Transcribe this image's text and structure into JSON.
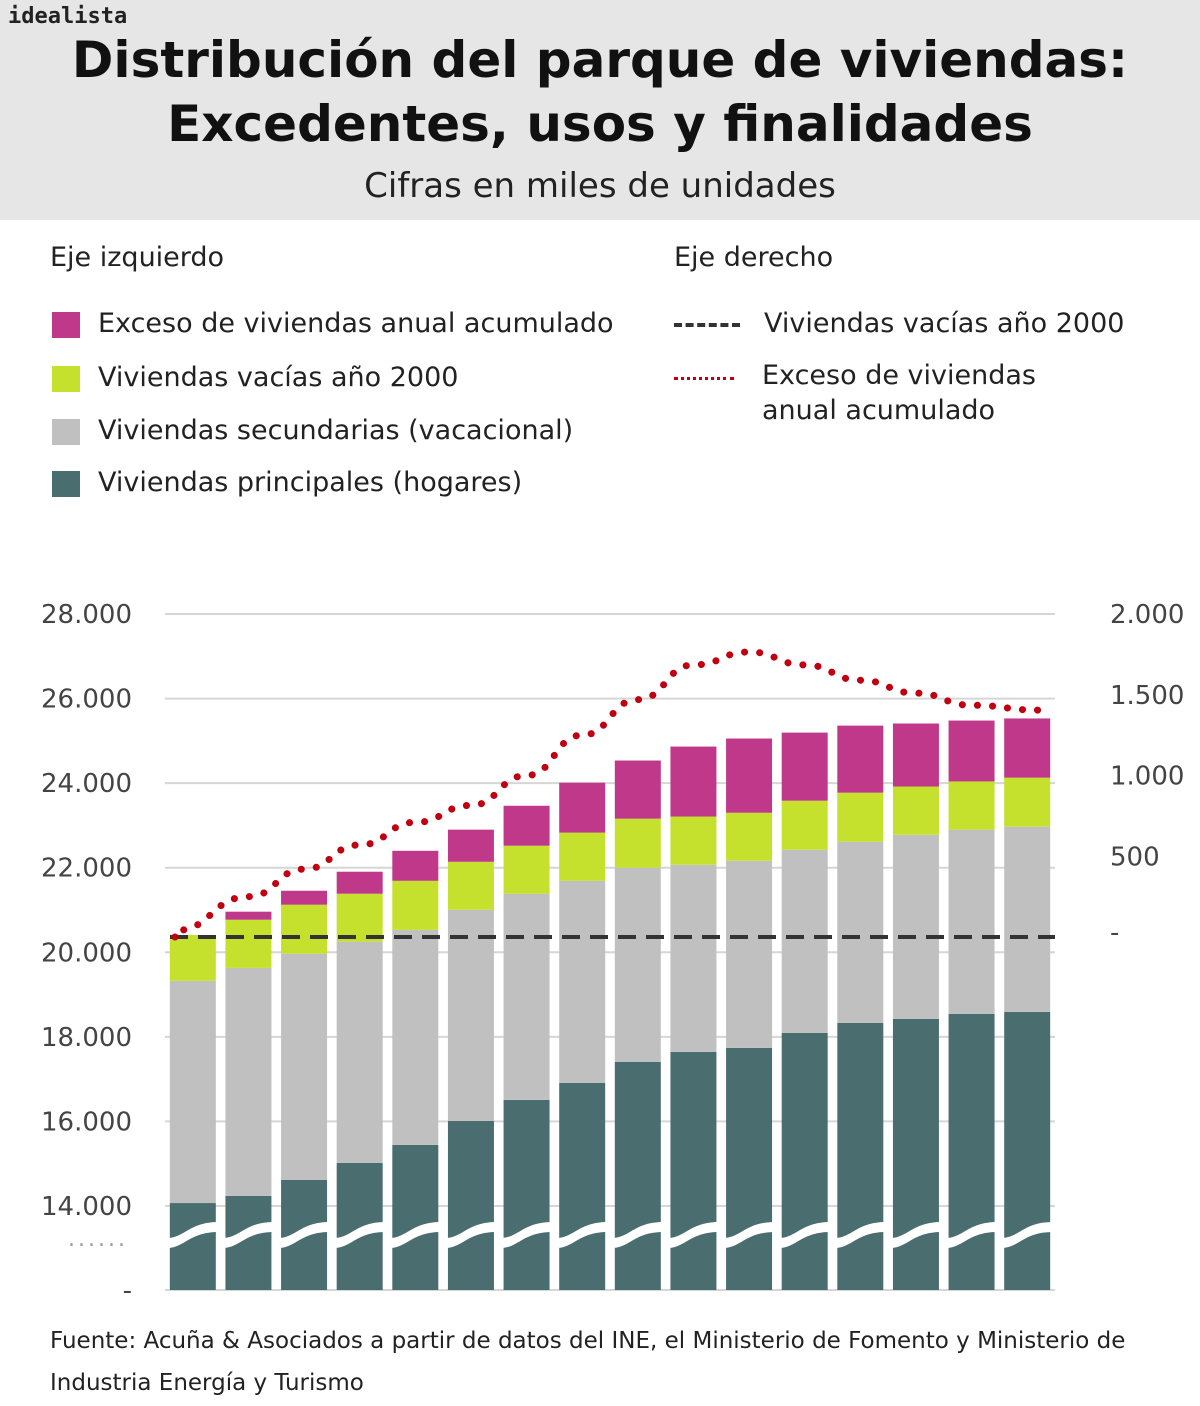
{
  "brand": "idealista",
  "header": {
    "title_line1": "Distribución del parque de viviendas:",
    "title_line2": "Excedentes, usos y finalidades",
    "subtitle": "Cifras en miles de unidades"
  },
  "legend": {
    "left_heading": "Eje izquierdo",
    "right_heading": "Eje derecho",
    "left_items": [
      {
        "label": "Exceso de viviendas anual acumulado",
        "color": "#c0388a"
      },
      {
        "label": "Viviendas vacías año 2000",
        "color": "#c5e02d"
      },
      {
        "label": "Viviendas secundarias (vacacional)",
        "color": "#c0c0c0"
      },
      {
        "label": "Viviendas principales (hogares)",
        "color": "#4a6e70"
      }
    ],
    "right_items": [
      {
        "label": "Viviendas vacías año 2000",
        "style": "dashed",
        "color": "#333333"
      },
      {
        "label": "Exceso de viviendas anual acumulado",
        "style": "dotted",
        "color": "#c00010"
      }
    ]
  },
  "chart_data": {
    "type": "bar",
    "stacked": true,
    "left_axis": {
      "ticks": [
        "28.000",
        "26.000",
        "24.000",
        "22.000",
        "20.000",
        "18.000",
        "16.000",
        "14.000",
        "-"
      ],
      "tick_values": [
        28000,
        26000,
        24000,
        22000,
        20000,
        18000,
        16000,
        14000,
        0
      ],
      "ylim": [
        14000,
        28000
      ],
      "broken": true
    },
    "right_axis": {
      "ticks": [
        "2.000",
        "1.500",
        "1.000",
        "500",
        "-"
      ],
      "tick_values": [
        2000,
        1500,
        1000,
        500,
        0
      ],
      "ylim": [
        0,
        2000
      ]
    },
    "grid": true,
    "series": [
      {
        "name": "Viviendas principales (hogares)",
        "color": "#4a6e70",
        "values": [
          14070,
          14240,
          14615,
          15020,
          15445,
          16010,
          16510,
          16910,
          17410,
          17645,
          17740,
          18095,
          18330,
          18425,
          18545,
          18590
        ]
      },
      {
        "name": "Viviendas secundarias (vacacional)",
        "color": "#c0c0c0",
        "values": [
          5255,
          5390,
          5350,
          5230,
          5085,
          4995,
          4875,
          4780,
          4590,
          4425,
          4425,
          4330,
          4285,
          4355,
          4355,
          4380
        ]
      },
      {
        "name": "Viviendas vacías año 2000",
        "color": "#c5e02d",
        "values": [
          1085,
          1140,
          1160,
          1135,
          1160,
          1135,
          1135,
          1140,
          1160,
          1140,
          1135,
          1160,
          1160,
          1140,
          1140,
          1160
        ]
      },
      {
        "name": "Exceso de viviendas anual acumulado",
        "color": "#c0388a",
        "values": [
          0,
          190,
          330,
          520,
          710,
          760,
          945,
          1180,
          1375,
          1655,
          1755,
          1610,
          1585,
          1490,
          1440,
          1400
        ]
      }
    ],
    "lines": [
      {
        "name": "Viviendas vacías año 2000",
        "axis": "right",
        "style": "dashed",
        "color": "#333333",
        "values": [
          0,
          0,
          0,
          0,
          0,
          0,
          0,
          0,
          0,
          0,
          0,
          0,
          0,
          0,
          0,
          0
        ]
      },
      {
        "name": "Exceso de viviendas anual acumulado",
        "axis": "right",
        "style": "dotted",
        "color": "#c00010",
        "values": [
          40,
          250,
          420,
          570,
          710,
          815,
          1000,
          1250,
          1470,
          1685,
          1765,
          1685,
          1590,
          1510,
          1435,
          1405
        ]
      }
    ]
  },
  "source": {
    "text": "Fuente: Acuña & Asociados a partir de datos del INE, el Ministerio de Fomento y Ministerio de Industria Energía y Turismo"
  }
}
